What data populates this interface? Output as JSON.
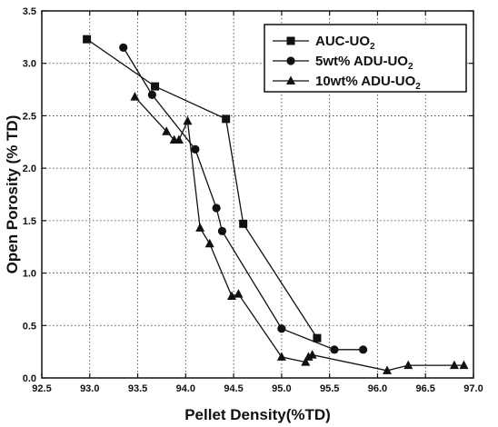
{
  "chart_data": {
    "type": "line",
    "xlabel": "Pellet Density(%TD)",
    "ylabel": "Open Porosity (% TD)",
    "xlim": [
      92.5,
      97.0
    ],
    "ylim": [
      0.0,
      3.5
    ],
    "x_ticks": [
      "92.5",
      "93.0",
      "93.5",
      "94.0",
      "94.5",
      "95.0",
      "95.5",
      "96.0",
      "96.5",
      "97.0"
    ],
    "y_ticks": [
      "0.0",
      "0.5",
      "1.0",
      "1.5",
      "2.0",
      "2.5",
      "3.0",
      "3.5"
    ],
    "grid": "dotted",
    "legend_position": "top-right",
    "series": [
      {
        "name": "AUC-UO2",
        "label_main": "AUC-UO",
        "label_sub": "2",
        "marker": "square",
        "points": [
          [
            92.97,
            3.23
          ],
          [
            93.68,
            2.78
          ],
          [
            94.42,
            2.47
          ],
          [
            94.6,
            1.47
          ],
          [
            95.37,
            0.38
          ]
        ]
      },
      {
        "name": "5wt% ADU-UO2",
        "label_main": "5wt% ADU-UO",
        "label_sub": "2",
        "marker": "circle",
        "points": [
          [
            93.35,
            3.15
          ],
          [
            93.65,
            2.7
          ],
          [
            94.1,
            2.18
          ],
          [
            94.32,
            1.62
          ],
          [
            94.38,
            1.4
          ],
          [
            95.0,
            0.47
          ],
          [
            95.55,
            0.27
          ],
          [
            95.85,
            0.27
          ]
        ]
      },
      {
        "name": "10wt% ADU-UO2",
        "label_main": "10wt% ADU-UO",
        "label_sub": "2",
        "marker": "triangle",
        "points": [
          [
            93.47,
            2.68
          ],
          [
            93.8,
            2.35
          ],
          [
            93.88,
            2.27
          ],
          [
            93.93,
            2.27
          ],
          [
            94.02,
            2.45
          ],
          [
            94.15,
            1.43
          ],
          [
            94.25,
            1.28
          ],
          [
            94.48,
            0.78
          ],
          [
            94.55,
            0.8
          ],
          [
            95.0,
            0.2
          ],
          [
            95.25,
            0.15
          ],
          [
            95.28,
            0.2
          ],
          [
            95.32,
            0.22
          ],
          [
            96.1,
            0.07
          ],
          [
            96.32,
            0.12
          ],
          [
            96.8,
            0.12
          ],
          [
            96.9,
            0.12
          ]
        ]
      }
    ]
  }
}
